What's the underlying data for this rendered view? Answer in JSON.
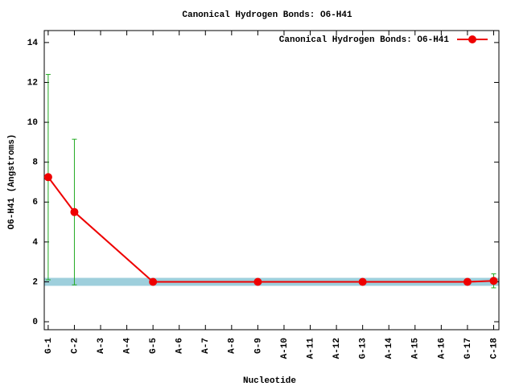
{
  "chart_data": {
    "type": "line",
    "title": "Canonical Hydrogen Bonds: O6-H41",
    "x_label": "Nucleotide",
    "y_label": "O6-H41 (Angstroms)",
    "xlim": [
      0.85,
      18.2
    ],
    "ylim": [
      -0.4,
      14.6
    ],
    "xticks": [
      {
        "value": 1,
        "label": "G-1"
      },
      {
        "value": 2,
        "label": "C-2"
      },
      {
        "value": 3,
        "label": "A-3"
      },
      {
        "value": 4,
        "label": "A-4"
      },
      {
        "value": 5,
        "label": "G-5"
      },
      {
        "value": 6,
        "label": "A-6"
      },
      {
        "value": 7,
        "label": "A-7"
      },
      {
        "value": 8,
        "label": "A-8"
      },
      {
        "value": 9,
        "label": "G-9"
      },
      {
        "value": 10,
        "label": "A-10"
      },
      {
        "value": 11,
        "label": "A-11"
      },
      {
        "value": 12,
        "label": "A-12"
      },
      {
        "value": 13,
        "label": "G-13"
      },
      {
        "value": 14,
        "label": "A-14"
      },
      {
        "value": 15,
        "label": "A-15"
      },
      {
        "value": 16,
        "label": "A-16"
      },
      {
        "value": 17,
        "label": "G-17"
      },
      {
        "value": 18,
        "label": "C-18"
      }
    ],
    "yticks": [
      0,
      2,
      4,
      6,
      8,
      10,
      12,
      14
    ],
    "reference_band": {
      "range": [
        1.8,
        2.2
      ],
      "color": "#9ecfdc"
    },
    "legend": "top-right",
    "error_color": "#22aa22",
    "series": [
      {
        "name": "Canonical Hydrogen Bonds: O6-H41",
        "color": "#ee0000",
        "x": [
          1,
          2,
          5,
          9,
          13,
          17,
          18
        ],
        "values": [
          7.25,
          5.5,
          2.0,
          2.0,
          2.0,
          2.0,
          2.05
        ],
        "errors": [
          5.15,
          3.65,
          0,
          0,
          0,
          0,
          0.35
        ]
      }
    ]
  }
}
